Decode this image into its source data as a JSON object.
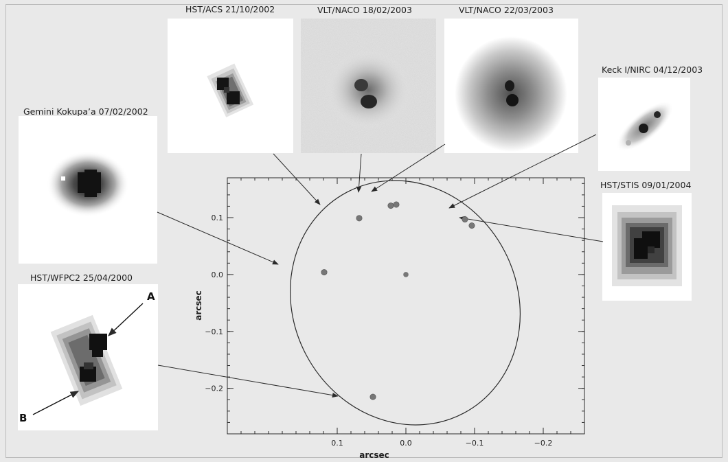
{
  "panels": {
    "hst_acs": {
      "label": "HST/ACS 21/10/2002"
    },
    "vlt_naco_1": {
      "label": "VLT/NACO 18/02/2003"
    },
    "vlt_naco_2": {
      "label": "VLT/NACO 22/03/2003"
    },
    "keck": {
      "label": "Keck I/NIRC 04/12/2003"
    },
    "gemini": {
      "label": "Gemini Kokupa’a 07/02/2002"
    },
    "hst_stis": {
      "label": "HST/STIS 09/01/2004"
    },
    "hst_wfpc2": {
      "label": "HST/WFPC2 25/04/2000",
      "label_a": "A",
      "label_b": "B"
    }
  },
  "plot": {
    "xlabel": "arcsec",
    "ylabel": "arcsec",
    "xlim": [
      0.26,
      -0.26
    ],
    "ylim": [
      -0.28,
      0.17
    ],
    "x_ticks": [
      {
        "value": 0.1,
        "label": "0.1"
      },
      {
        "value": 0.0,
        "label": "0.0"
      },
      {
        "value": -0.1,
        "label": "−0.1"
      },
      {
        "value": -0.2,
        "label": "−0.2"
      }
    ],
    "y_ticks": [
      {
        "value": 0.1,
        "label": "0.1"
      },
      {
        "value": 0.0,
        "label": "0.0"
      },
      {
        "value": -0.1,
        "label": "−0.1"
      },
      {
        "value": -0.2,
        "label": "−0.2"
      }
    ],
    "center_point": [
      0.0,
      0.0
    ],
    "observations": [
      {
        "panel": "hst_wfpc2",
        "x": 0.048,
        "y": -0.215
      },
      {
        "panel": "gemini",
        "x": 0.119,
        "y": 0.004
      },
      {
        "panel": "hst_acs",
        "x": 0.068,
        "y": 0.099
      },
      {
        "panel": "vlt_naco_1",
        "x": 0.022,
        "y": 0.121
      },
      {
        "panel": "vlt_naco_2",
        "x": 0.014,
        "y": 0.123
      },
      {
        "panel": "keck",
        "x": -0.086,
        "y": 0.097
      },
      {
        "panel": "hst_stis",
        "x": -0.096,
        "y": 0.086
      }
    ]
  },
  "colors": {
    "point": "#777777",
    "line": "#2a2a2a"
  }
}
